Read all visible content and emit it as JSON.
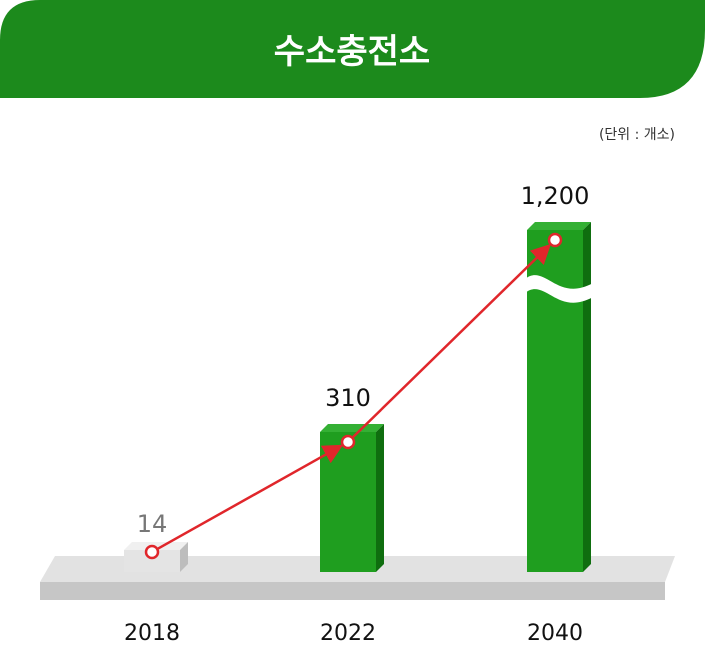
{
  "chart_data": {
    "type": "bar",
    "title": "수소충전소",
    "unit_note": "(단위 : 개소)",
    "categories": [
      "2018",
      "2022",
      "2040"
    ],
    "values": [
      14,
      310,
      1200
    ],
    "value_labels": [
      "14",
      "310",
      "1,200"
    ],
    "axis_break_on": "2040",
    "overlay_line": true,
    "colors": {
      "banner": "#1c8a1c",
      "bar_front": "#1f9e1f",
      "bar_top": "#34b034",
      "bar_side": "#0f6e0f",
      "first_bar": "#e4e4e4",
      "line": "#e0262b",
      "base": "#c8c8c8"
    }
  }
}
